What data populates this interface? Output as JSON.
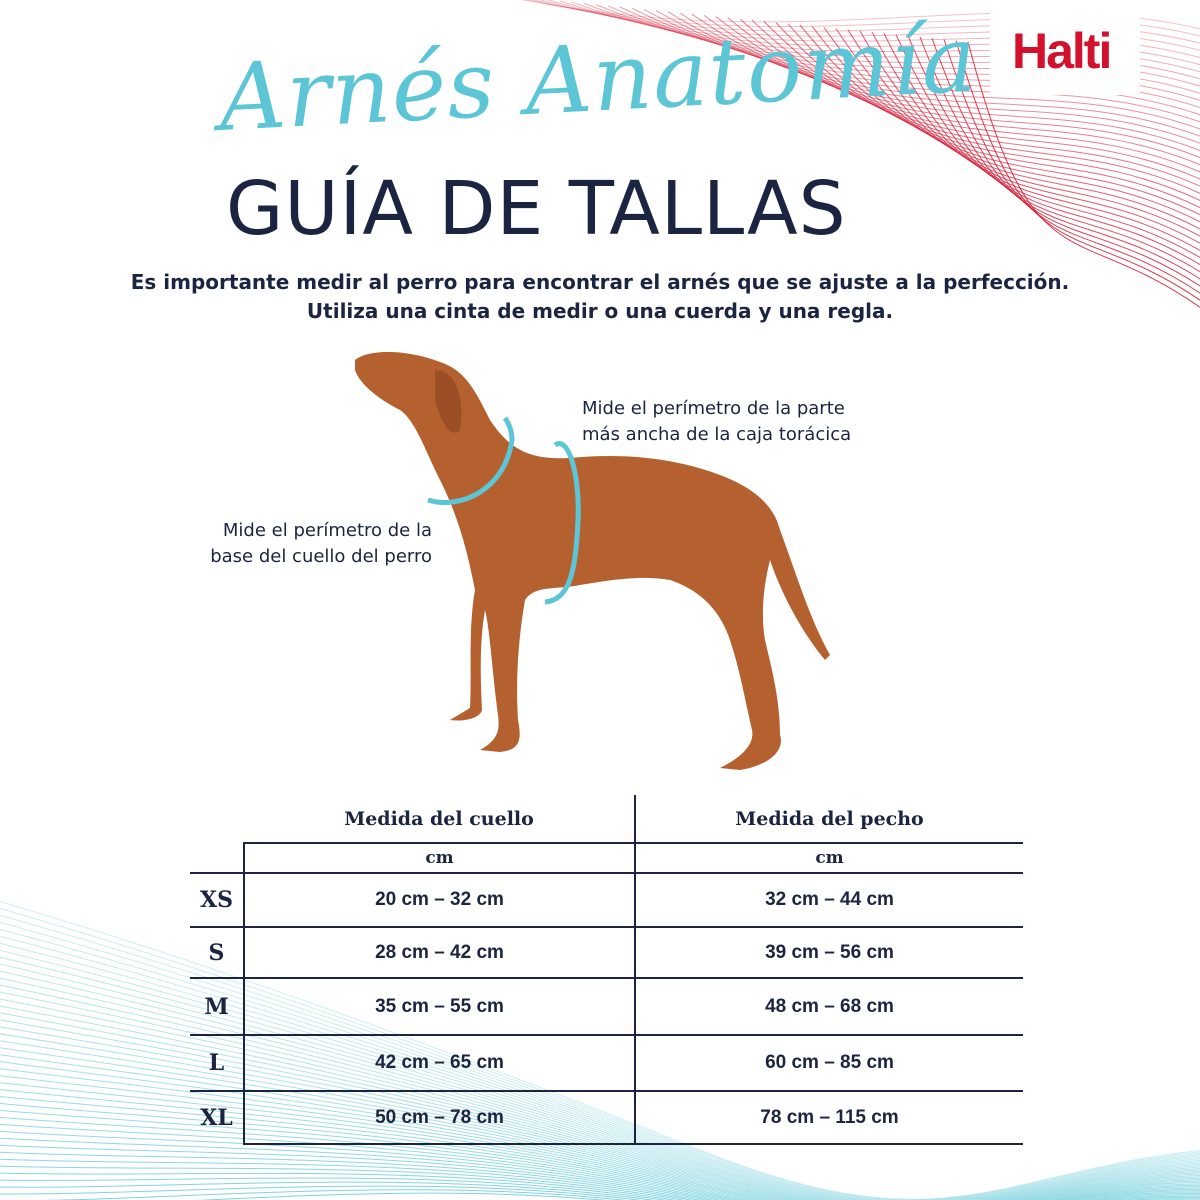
{
  "brand": {
    "logo": "Halti",
    "color": "#d4112c"
  },
  "header": {
    "script_title": "Arnés Anatomía",
    "title": "GUÍA DE TALLAS"
  },
  "intro": {
    "line1": "Es importante medir al perro para encontrar el arnés que se ajuste a la perfección.",
    "line2": "Utiliza una cinta de medir o una cuerda y una regla."
  },
  "notes": {
    "chest": {
      "line1": "Mide el perímetro de la parte",
      "line2": "más ancha de la caja torácica"
    },
    "neck": {
      "line1": "Mide el perímetro de la",
      "line2": "base del cuello del perro"
    }
  },
  "colors": {
    "accent": "#5cc6d6",
    "text": "#1b2440",
    "brand": "#d4112c"
  },
  "table": {
    "headers": [
      "Medida del cuello",
      "Medida del pecho"
    ],
    "units": [
      "cm",
      "cm"
    ],
    "rows": [
      {
        "size": "XS",
        "neck": "20 cm – 32 cm",
        "chest": "32 cm – 44 cm"
      },
      {
        "size": "S",
        "neck": "28 cm – 42 cm",
        "chest": "39 cm – 56 cm"
      },
      {
        "size": "M",
        "neck": "35 cm – 55 cm",
        "chest": "48 cm – 68 cm"
      },
      {
        "size": "L",
        "neck": "42 cm – 65 cm",
        "chest": "60 cm – 85 cm"
      },
      {
        "size": "XL",
        "neck": "50 cm – 78 cm",
        "chest": "78 cm – 115 cm"
      }
    ]
  }
}
